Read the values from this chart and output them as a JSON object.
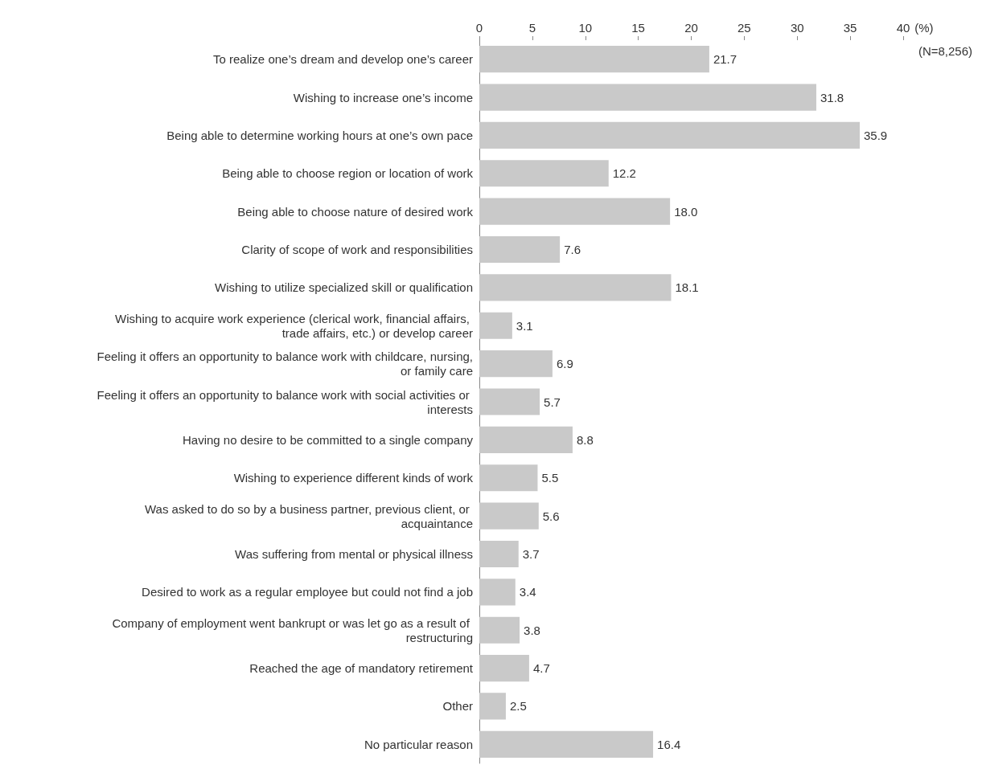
{
  "chart_data": {
    "type": "bar",
    "orientation": "horizontal",
    "xlabel": "(%)",
    "annotations": [
      "(N=8,256)"
    ],
    "categories": [
      "To realize one’s dream and develop one’s career",
      "Wishing to increase one’s income",
      "Being able to determine working hours at one’s own pace",
      "Being able to choose region or location of work",
      "Being able to choose nature of desired work",
      "Clarity of scope of work and responsibilities",
      "Wishing to utilize specialized skill or qualification",
      "Wishing to acquire work experience (clerical work, financial affairs, trade affairs, etc.) or develop career",
      "Feeling it offers an opportunity to balance work with childcare, nursing, or family care",
      "Feeling it offers an opportunity to balance work with social activities or interests",
      "Having no desire to be committed to a single company",
      "Wishing to experience different kinds of work",
      "Was asked to do so by a business partner, previous client, or acquaintance",
      "Was suffering from mental or physical illness",
      "Desired to work as a regular employee but could not find a job",
      "Company of employment went bankrupt or was let go as a result of restructuring",
      "Reached the age of mandatory retirement",
      "Other",
      "No particular reason"
    ],
    "values": [
      21.7,
      31.8,
      35.9,
      12.2,
      18.0,
      7.6,
      18.1,
      3.1,
      6.9,
      5.7,
      8.8,
      5.5,
      5.6,
      3.7,
      3.4,
      3.8,
      4.7,
      2.5,
      16.4
    ],
    "value_labels": [
      "21.7",
      "31.8",
      "35.9",
      "12.2",
      "18.0",
      "7.6",
      "18.1",
      "3.1",
      "6.9",
      "5.7",
      "8.8",
      "5.5",
      "5.6",
      "3.7",
      "3.4",
      "3.8",
      "4.7",
      "2.5",
      "16.4"
    ],
    "color": "#c9c9c9",
    "xlim": [
      0,
      40
    ],
    "xticks": [
      0,
      5,
      10,
      15,
      20,
      25,
      30,
      35,
      40
    ],
    "grid": false
  }
}
